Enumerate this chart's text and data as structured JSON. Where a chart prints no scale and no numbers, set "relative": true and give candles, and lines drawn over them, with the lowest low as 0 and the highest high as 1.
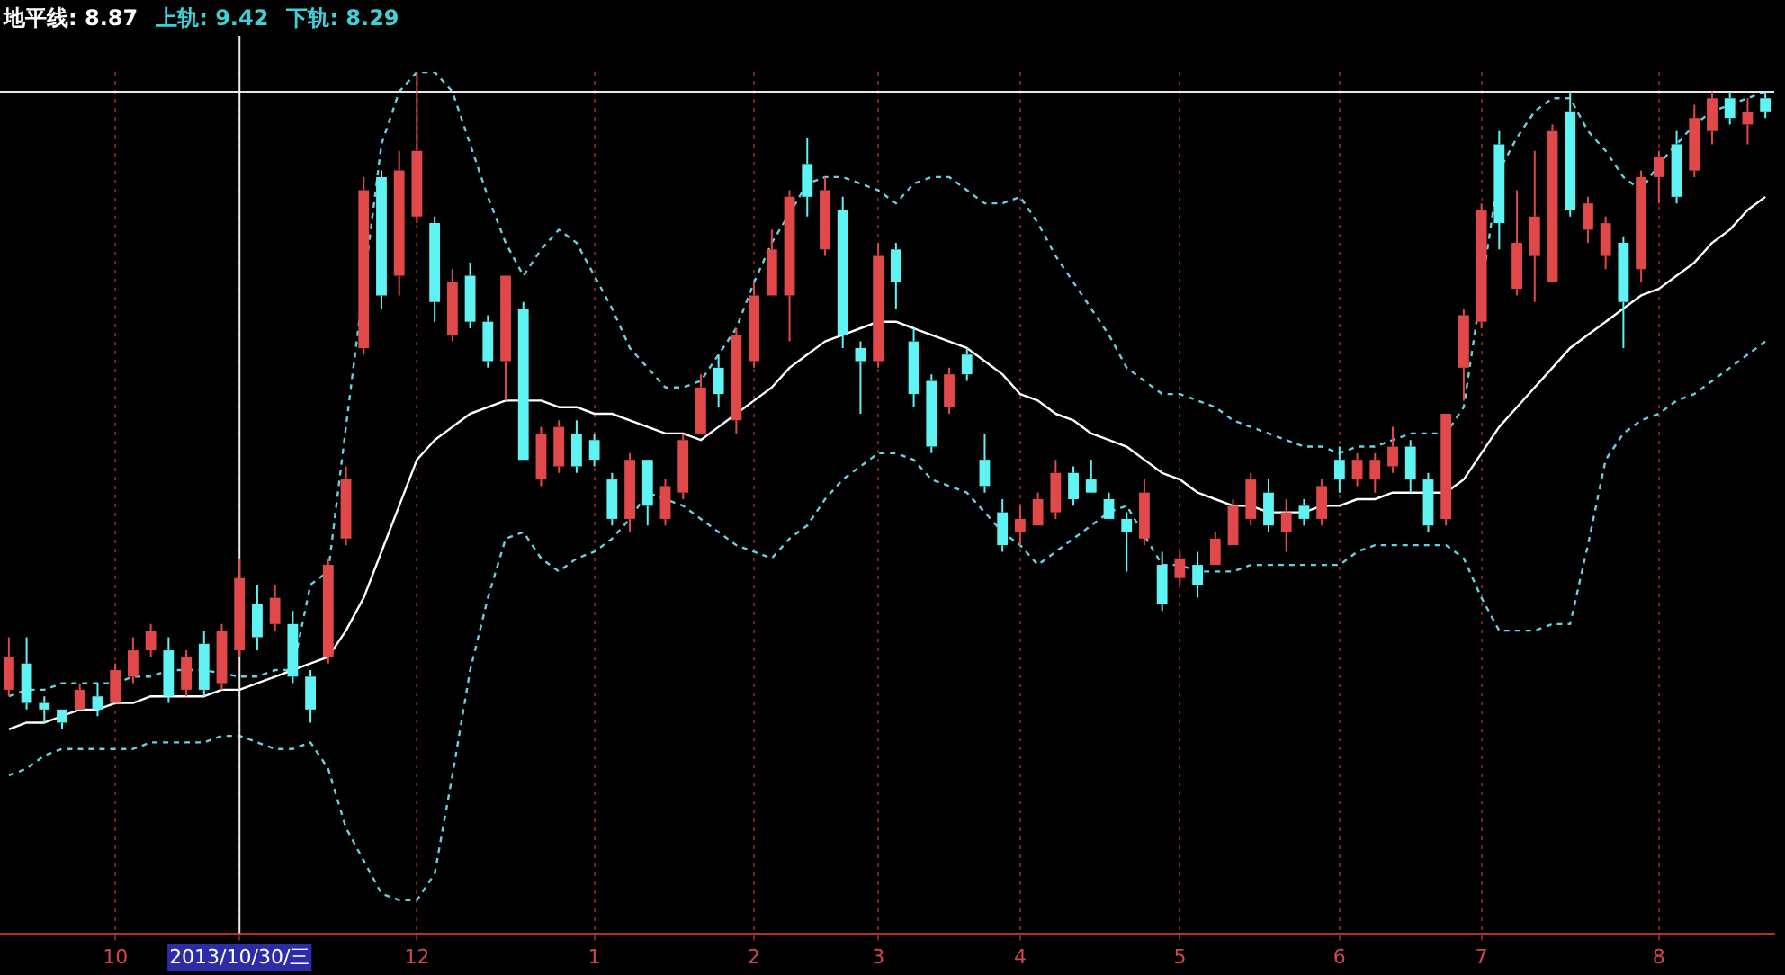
{
  "chart_data": {
    "type": "candlestick",
    "relative": true,
    "categories": [
      null,
      null,
      null,
      null,
      null,
      null,
      "10",
      null,
      null,
      null,
      null,
      null,
      null,
      "2013/10/30/三",
      null,
      null,
      null,
      null,
      null,
      null,
      null,
      null,
      null,
      "12",
      null,
      null,
      null,
      null,
      null,
      null,
      null,
      null,
      null,
      "1",
      null,
      null,
      null,
      null,
      null,
      null,
      null,
      null,
      "2",
      null,
      null,
      null,
      null,
      null,
      null,
      "3",
      null,
      null,
      null,
      null,
      null,
      null,
      null,
      "4",
      null,
      null,
      null,
      null,
      null,
      null,
      null,
      null,
      "5",
      null,
      null,
      null,
      null,
      null,
      null,
      null,
      null,
      "6",
      null,
      null,
      null,
      null,
      null,
      null,
      null,
      "7",
      null,
      null,
      null,
      null,
      null,
      null,
      null,
      null,
      null,
      "8",
      null,
      null,
      null,
      null,
      null,
      null
    ],
    "ohlc": [
      [
        0.06,
        0.14,
        0.05,
        0.11
      ],
      [
        0.1,
        0.14,
        0.03,
        0.04
      ],
      [
        0.04,
        0.05,
        0.01,
        0.03
      ],
      [
        0.03,
        0.03,
        0.0,
        0.01
      ],
      [
        0.03,
        0.07,
        0.03,
        0.06
      ],
      [
        0.05,
        0.07,
        0.02,
        0.03
      ],
      [
        0.04,
        0.1,
        0.04,
        0.09
      ],
      [
        0.08,
        0.14,
        0.07,
        0.12
      ],
      [
        0.12,
        0.16,
        0.11,
        0.15
      ],
      [
        0.12,
        0.14,
        0.04,
        0.05
      ],
      [
        0.06,
        0.12,
        0.05,
        0.11
      ],
      [
        0.13,
        0.15,
        0.05,
        0.06
      ],
      [
        0.07,
        0.16,
        0.06,
        0.15
      ],
      [
        0.12,
        0.26,
        0.11,
        0.23
      ],
      [
        0.19,
        0.22,
        0.12,
        0.14
      ],
      [
        0.16,
        0.22,
        0.15,
        0.2
      ],
      [
        0.16,
        0.18,
        0.07,
        0.08
      ],
      [
        0.08,
        0.09,
        0.01,
        0.03
      ],
      [
        0.11,
        0.26,
        0.1,
        0.25
      ],
      [
        0.29,
        0.4,
        0.28,
        0.38
      ],
      [
        0.58,
        0.84,
        0.57,
        0.82
      ],
      [
        0.84,
        0.85,
        0.64,
        0.66
      ],
      [
        0.69,
        0.88,
        0.66,
        0.85
      ],
      [
        0.78,
        1.0,
        0.77,
        0.88
      ],
      [
        0.77,
        0.78,
        0.62,
        0.65
      ],
      [
        0.6,
        0.7,
        0.59,
        0.68
      ],
      [
        0.69,
        0.71,
        0.61,
        0.62
      ],
      [
        0.62,
        0.63,
        0.55,
        0.56
      ],
      [
        0.56,
        0.69,
        0.5,
        0.69
      ],
      [
        0.64,
        0.65,
        0.41,
        0.41
      ],
      [
        0.38,
        0.46,
        0.37,
        0.45
      ],
      [
        0.4,
        0.47,
        0.39,
        0.46
      ],
      [
        0.45,
        0.47,
        0.39,
        0.4
      ],
      [
        0.44,
        0.45,
        0.4,
        0.41
      ],
      [
        0.38,
        0.39,
        0.31,
        0.32
      ],
      [
        0.32,
        0.42,
        0.3,
        0.41
      ],
      [
        0.41,
        0.41,
        0.31,
        0.34
      ],
      [
        0.32,
        0.38,
        0.31,
        0.37
      ],
      [
        0.36,
        0.45,
        0.35,
        0.44
      ],
      [
        0.45,
        0.54,
        0.45,
        0.52
      ],
      [
        0.55,
        0.57,
        0.49,
        0.51
      ],
      [
        0.47,
        0.61,
        0.45,
        0.6
      ],
      [
        0.56,
        0.68,
        0.55,
        0.66
      ],
      [
        0.66,
        0.76,
        0.66,
        0.73
      ],
      [
        0.66,
        0.82,
        0.59,
        0.81
      ],
      [
        0.86,
        0.9,
        0.78,
        0.81
      ],
      [
        0.73,
        0.84,
        0.72,
        0.82
      ],
      [
        0.79,
        0.81,
        0.58,
        0.6
      ],
      [
        0.58,
        0.59,
        0.48,
        0.56
      ],
      [
        0.56,
        0.74,
        0.55,
        0.72
      ],
      [
        0.73,
        0.74,
        0.64,
        0.68
      ],
      [
        0.59,
        0.61,
        0.49,
        0.51
      ],
      [
        0.53,
        0.54,
        0.42,
        0.43
      ],
      [
        0.49,
        0.55,
        0.48,
        0.54
      ],
      [
        0.57,
        0.58,
        0.53,
        0.54
      ],
      [
        0.41,
        0.45,
        0.36,
        0.37
      ],
      [
        0.33,
        0.35,
        0.27,
        0.28
      ],
      [
        0.3,
        0.34,
        0.28,
        0.32
      ],
      [
        0.31,
        0.36,
        0.31,
        0.35
      ],
      [
        0.33,
        0.41,
        0.32,
        0.39
      ],
      [
        0.39,
        0.4,
        0.34,
        0.35
      ],
      [
        0.38,
        0.41,
        0.36,
        0.36
      ],
      [
        0.35,
        0.36,
        0.32,
        0.32
      ],
      [
        0.32,
        0.33,
        0.24,
        0.3
      ],
      [
        0.29,
        0.38,
        0.28,
        0.36
      ],
      [
        0.25,
        0.27,
        0.18,
        0.19
      ],
      [
        0.23,
        0.27,
        0.22,
        0.26
      ],
      [
        0.25,
        0.27,
        0.2,
        0.22
      ],
      [
        0.25,
        0.3,
        0.25,
        0.29
      ],
      [
        0.28,
        0.35,
        0.28,
        0.34
      ],
      [
        0.32,
        0.39,
        0.31,
        0.38
      ],
      [
        0.36,
        0.38,
        0.3,
        0.31
      ],
      [
        0.3,
        0.35,
        0.27,
        0.33
      ],
      [
        0.34,
        0.35,
        0.31,
        0.32
      ],
      [
        0.32,
        0.38,
        0.31,
        0.37
      ],
      [
        0.41,
        0.43,
        0.36,
        0.38
      ],
      [
        0.38,
        0.42,
        0.37,
        0.41
      ],
      [
        0.38,
        0.42,
        0.36,
        0.41
      ],
      [
        0.4,
        0.46,
        0.39,
        0.43
      ],
      [
        0.43,
        0.44,
        0.36,
        0.38
      ],
      [
        0.38,
        0.39,
        0.3,
        0.31
      ],
      [
        0.32,
        0.48,
        0.31,
        0.48
      ],
      [
        0.55,
        0.64,
        0.5,
        0.63
      ],
      [
        0.62,
        0.8,
        0.61,
        0.79
      ],
      [
        0.89,
        0.91,
        0.73,
        0.77
      ],
      [
        0.67,
        0.82,
        0.66,
        0.74
      ],
      [
        0.72,
        0.88,
        0.65,
        0.78
      ],
      [
        0.68,
        0.92,
        0.68,
        0.91
      ],
      [
        0.94,
        0.97,
        0.78,
        0.79
      ],
      [
        0.76,
        0.81,
        0.74,
        0.8
      ],
      [
        0.72,
        0.78,
        0.7,
        0.77
      ],
      [
        0.74,
        0.75,
        0.58,
        0.65
      ],
      [
        0.7,
        0.85,
        0.68,
        0.84
      ],
      [
        0.84,
        0.88,
        0.8,
        0.87
      ],
      [
        0.89,
        0.91,
        0.8,
        0.81
      ],
      [
        0.85,
        0.95,
        0.84,
        0.93
      ],
      [
        0.91,
        0.97,
        0.89,
        0.96
      ],
      [
        0.96,
        0.97,
        0.92,
        0.93
      ],
      [
        0.92,
        0.96,
        0.89,
        0.94
      ],
      [
        0.96,
        0.97,
        0.93,
        0.94
      ]
    ],
    "colors": [
      "#e0484a",
      "#5ff3f3",
      "#5ff3f3",
      "#5ff3f3",
      "#e0484a",
      "#5ff3f3",
      "#e0484a",
      "#e0484a",
      "#e0484a",
      "#5ff3f3",
      "#e0484a",
      "#5ff3f3",
      "#e0484a",
      "#e0484a",
      "#5ff3f3",
      "#e0484a",
      "#5ff3f3",
      "#5ff3f3",
      "#e0484a",
      "#e0484a",
      "#e0484a",
      "#5ff3f3",
      "#e0484a",
      "#e0484a",
      "#5ff3f3",
      "#e0484a",
      "#5ff3f3",
      "#5ff3f3",
      "#e0484a",
      "#5ff3f3",
      "#e0484a",
      "#e0484a",
      "#5ff3f3",
      "#5ff3f3",
      "#5ff3f3",
      "#e0484a",
      "#5ff3f3",
      "#e0484a",
      "#e0484a",
      "#e0484a",
      "#5ff3f3",
      "#e0484a",
      "#e0484a",
      "#e0484a",
      "#e0484a",
      "#5ff3f3",
      "#e0484a",
      "#5ff3f3",
      "#5ff3f3",
      "#e0484a",
      "#5ff3f3",
      "#5ff3f3",
      "#5ff3f3",
      "#e0484a",
      "#5ff3f3",
      "#5ff3f3",
      "#5ff3f3",
      "#e0484a",
      "#e0484a",
      "#e0484a",
      "#5ff3f3",
      "#5ff3f3",
      "#5ff3f3",
      "#5ff3f3",
      "#e0484a",
      "#5ff3f3",
      "#e0484a",
      "#5ff3f3",
      "#e0484a",
      "#e0484a",
      "#e0484a",
      "#5ff3f3",
      "#e0484a",
      "#5ff3f3",
      "#e0484a",
      "#5ff3f3",
      "#e0484a",
      "#e0484a",
      "#e0484a",
      "#5ff3f3",
      "#5ff3f3",
      "#e0484a",
      "#e0484a",
      "#e0484a",
      "#5ff3f3",
      "#e0484a",
      "#e0484a",
      "#e0484a",
      "#5ff3f3",
      "#e0484a",
      "#e0484a",
      "#5ff3f3",
      "#e0484a",
      "#e0484a",
      "#5ff3f3",
      "#e0484a",
      "#e0484a",
      "#5ff3f3",
      "#e0484a",
      "#5ff3f3"
    ],
    "series": [
      {
        "type": "line",
        "color": "#ffffff",
        "line_style": "solid",
        "values": [
          0.0,
          0.01,
          0.01,
          0.02,
          0.03,
          0.03,
          0.04,
          0.04,
          0.05,
          0.05,
          0.05,
          0.05,
          0.06,
          0.06,
          0.07,
          0.08,
          0.09,
          0.1,
          0.11,
          0.15,
          0.2,
          0.27,
          0.34,
          0.41,
          0.44,
          0.46,
          0.48,
          0.49,
          0.5,
          0.5,
          0.5,
          0.49,
          0.49,
          0.48,
          0.48,
          0.47,
          0.46,
          0.45,
          0.45,
          0.44,
          0.46,
          0.48,
          0.5,
          0.52,
          0.55,
          0.57,
          0.59,
          0.6,
          0.61,
          0.62,
          0.62,
          0.61,
          0.6,
          0.59,
          0.58,
          0.56,
          0.54,
          0.51,
          0.5,
          0.48,
          0.47,
          0.45,
          0.44,
          0.43,
          0.41,
          0.39,
          0.38,
          0.36,
          0.35,
          0.34,
          0.34,
          0.33,
          0.33,
          0.33,
          0.34,
          0.34,
          0.35,
          0.35,
          0.36,
          0.36,
          0.36,
          0.36,
          0.38,
          0.42,
          0.46,
          0.49,
          0.52,
          0.55,
          0.58,
          0.6,
          0.62,
          0.64,
          0.66,
          0.67,
          0.69,
          0.71,
          0.74,
          0.76,
          0.79,
          0.81
        ]
      },
      {
        "type": "line",
        "color": "#6ccfe0",
        "line_style": "dashed",
        "values": [
          0.05,
          0.06,
          0.06,
          0.07,
          0.07,
          0.07,
          0.07,
          0.08,
          0.08,
          0.09,
          0.09,
          0.09,
          null,
          0.08,
          0.08,
          0.09,
          0.09,
          0.22,
          0.24,
          0.46,
          null,
          0.89,
          0.97,
          1.0,
          1.0,
          0.97,
          0.89,
          0.81,
          0.74,
          0.69,
          0.73,
          0.76,
          0.74,
          0.69,
          0.64,
          0.58,
          0.55,
          0.52,
          0.52,
          0.53,
          0.57,
          0.61,
          0.68,
          0.74,
          null,
          0.83,
          0.84,
          0.84,
          0.83,
          0.82,
          0.8,
          0.83,
          0.84,
          0.84,
          0.82,
          0.8,
          0.8,
          0.81,
          0.77,
          0.72,
          0.68,
          0.64,
          0.6,
          0.55,
          0.53,
          0.51,
          0.51,
          0.5,
          0.49,
          0.47,
          0.46,
          0.45,
          0.44,
          0.43,
          0.43,
          0.42,
          0.43,
          0.43,
          0.44,
          0.45,
          0.45,
          0.45,
          0.49,
          null,
          0.85,
          0.9,
          0.94,
          0.96,
          0.96,
          0.91,
          0.88,
          0.84,
          0.82,
          0.86,
          0.89,
          0.92,
          0.94,
          0.95,
          0.96,
          0.97
        ]
      },
      {
        "type": "line",
        "color": "#6ccfe0",
        "line_style": "dashed",
        "values": [
          -0.07,
          -0.06,
          -0.04,
          -0.03,
          -0.03,
          -0.03,
          -0.03,
          -0.03,
          -0.02,
          -0.02,
          -0.02,
          -0.02,
          -0.01,
          -0.01,
          -0.02,
          -0.03,
          -0.03,
          -0.02,
          -0.06,
          -0.15,
          -0.2,
          -0.25,
          -0.26,
          -0.26,
          -0.22,
          -0.07,
          0.09,
          0.2,
          0.29,
          0.3,
          0.26,
          0.24,
          0.26,
          0.27,
          0.29,
          0.32,
          0.36,
          0.35,
          0.34,
          0.32,
          0.3,
          0.28,
          0.27,
          0.26,
          0.29,
          0.31,
          0.35,
          0.38,
          0.4,
          0.42,
          0.42,
          0.41,
          0.38,
          0.37,
          0.36,
          0.33,
          0.3,
          0.28,
          0.25,
          0.27,
          0.29,
          0.31,
          0.33,
          0.34,
          null,
          0.25,
          0.25,
          0.24,
          0.24,
          0.24,
          0.25,
          0.25,
          0.25,
          0.25,
          0.25,
          0.25,
          0.27,
          0.28,
          0.28,
          0.28,
          0.28,
          0.28,
          0.26,
          0.2,
          0.15,
          0.15,
          0.15,
          0.16,
          0.16,
          0.28,
          0.41,
          0.45,
          0.47,
          0.48,
          0.5,
          0.51,
          0.53,
          0.55,
          0.57,
          0.59
        ]
      }
    ],
    "annotations": [
      "地平线: 8.87",
      "上轨: 9.42",
      "下轨: 8.29"
    ],
    "ref_lines": [
      {
        "axis": "x",
        "value": "2013/10/30/三",
        "color": "#e8e8e8"
      },
      {
        "axis": "y",
        "value": 0.97,
        "color": "#e8e8e8"
      }
    ],
    "grid": "x",
    "marker": "none"
  }
}
